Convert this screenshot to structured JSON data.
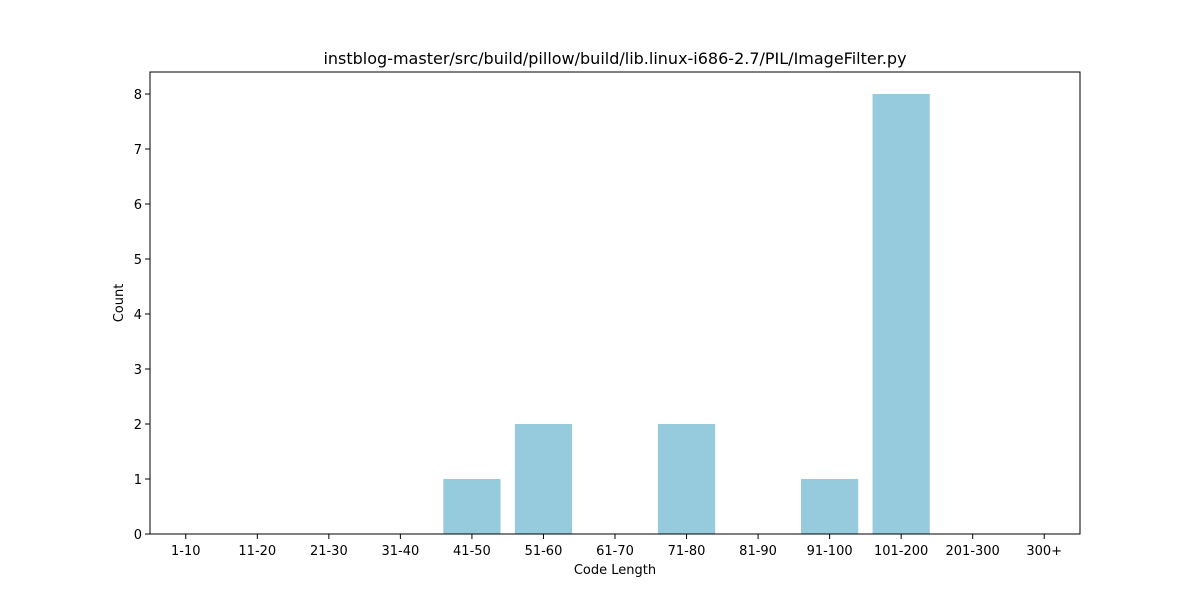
{
  "chart_data": {
    "type": "bar",
    "title": "instblog-master/src/build/pillow/build/lib.linux-i686-2.7/PIL/ImageFilter.py",
    "xlabel": "Code Length",
    "ylabel": "Count",
    "categories": [
      "1-10",
      "11-20",
      "21-30",
      "31-40",
      "41-50",
      "51-60",
      "61-70",
      "71-80",
      "81-90",
      "91-100",
      "101-200",
      "201-300",
      "300+"
    ],
    "values": [
      0,
      0,
      0,
      0,
      1,
      2,
      0,
      2,
      0,
      1,
      8,
      0,
      0
    ],
    "yticks": [
      0,
      1,
      2,
      3,
      4,
      5,
      6,
      7,
      8
    ],
    "ylim": [
      0,
      8.4
    ],
    "bar_color": "#96cadd",
    "grid": false,
    "legend": "none"
  }
}
